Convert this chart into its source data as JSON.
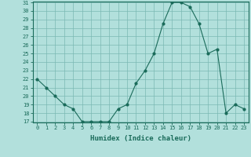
{
  "x": [
    0,
    1,
    2,
    3,
    4,
    5,
    6,
    7,
    8,
    9,
    10,
    11,
    12,
    13,
    14,
    15,
    16,
    17,
    18,
    19,
    20,
    21,
    22,
    23
  ],
  "y": [
    22,
    21,
    20,
    19,
    18.5,
    17,
    17,
    17,
    17,
    18.5,
    19,
    21.5,
    23,
    25,
    28.5,
    31,
    31,
    30.5,
    28.5,
    25,
    25.5,
    18,
    19,
    18.5
  ],
  "line_color": "#1a6b5a",
  "marker_color": "#1a6b5a",
  "bg_color": "#b2e0dc",
  "grid_color": "#7ab8b3",
  "xlabel": "Humidex (Indice chaleur)",
  "ylim": [
    17,
    31
  ],
  "xlim": [
    -0.5,
    23.5
  ],
  "yticks": [
    17,
    18,
    19,
    20,
    21,
    22,
    23,
    24,
    25,
    26,
    27,
    28,
    29,
    30,
    31
  ],
  "xticks": [
    0,
    1,
    2,
    3,
    4,
    5,
    6,
    7,
    8,
    9,
    10,
    11,
    12,
    13,
    14,
    15,
    16,
    17,
    18,
    19,
    20,
    21,
    22,
    23
  ],
  "tick_fontsize": 5,
  "xlabel_fontsize": 6.5,
  "linewidth": 0.8,
  "markersize": 2.0
}
